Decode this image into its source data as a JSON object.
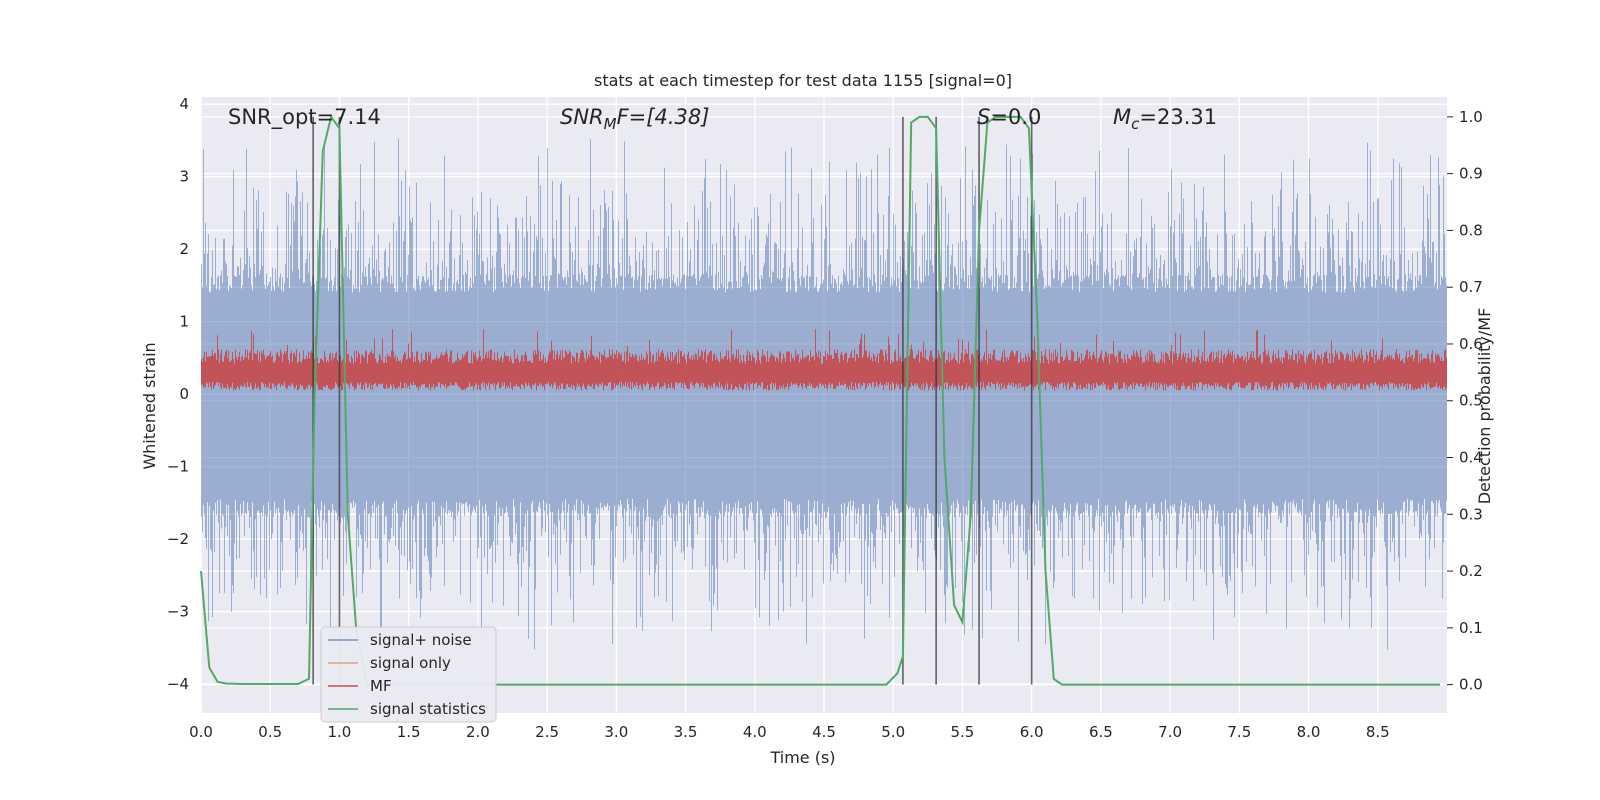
{
  "chart_data": {
    "type": "line",
    "title": "stats at each timestep for test data 1155 [signal=0]",
    "xlabel": "Time (s)",
    "ylabel_left": "Whitened strain",
    "ylabel_right": "Detection probability/MF",
    "xlim": [
      0,
      9.0
    ],
    "ylim_left": [
      -4.4,
      4.1
    ],
    "ylim_right": [
      -0.05,
      1.035
    ],
    "x_ticks": [
      "0.0",
      "0.5",
      "1.0",
      "1.5",
      "2.0",
      "2.5",
      "3.0",
      "3.5",
      "4.0",
      "4.5",
      "5.0",
      "5.5",
      "6.0",
      "6.5",
      "7.0",
      "7.5",
      "8.0",
      "8.5"
    ],
    "y_ticks_left": [
      "−4",
      "−3",
      "−2",
      "−1",
      "0",
      "1",
      "2",
      "3",
      "4"
    ],
    "y_ticks_right": [
      "0.0",
      "0.1",
      "0.2",
      "0.3",
      "0.4",
      "0.5",
      "0.6",
      "0.7",
      "0.8",
      "0.9",
      "1.0"
    ],
    "annotations": {
      "snr_opt": "SNR_opt=7.14",
      "snr_mf_base": "SNR",
      "snr_mf_sub": "M",
      "snr_mf_rest": "F=[4.38]",
      "s_base": "S",
      "s_rest": "=0.0",
      "mc_base": "M",
      "mc_sub": "c",
      "mc_rest": "=23.31"
    },
    "legend": {
      "position": "lower-left",
      "entries": [
        "signal+ noise",
        "signal only",
        "MF",
        "signal statistics"
      ]
    },
    "colors": {
      "noise": "#4c72b0",
      "signal_only": "#dd8452",
      "mf": "#c44e52",
      "stats": "#55a868",
      "plot_bg": "#eaeaf2",
      "grid": "#ffffff",
      "vline": "#333333"
    },
    "vertical_lines": [
      0.81,
      1.0,
      5.07,
      5.31,
      5.62,
      6.0
    ],
    "series": [
      {
        "name": "signal+ noise",
        "description": "whitened strain noise, amplitude mostly within ±1.7 with spikes to ±3.6",
        "core_band": [
          -1.7,
          1.65
        ],
        "spike_range": [
          -3.6,
          3.65
        ]
      },
      {
        "name": "signal only",
        "values": []
      },
      {
        "name": "MF",
        "description": "matched filter output, band roughly 0.05 to 0.65",
        "band": [
          0.05,
          0.62
        ]
      },
      {
        "name": "signal statistics",
        "axis": "right",
        "x": [
          0.0,
          0.06,
          0.12,
          0.18,
          0.3,
          0.5,
          0.7,
          0.78,
          0.82,
          0.88,
          0.94,
          1.0,
          1.06,
          1.12,
          1.2,
          2.0,
          3.0,
          4.0,
          4.95,
          5.03,
          5.07,
          5.13,
          5.19,
          5.25,
          5.31,
          5.37,
          5.44,
          5.5,
          5.56,
          5.62,
          5.68,
          5.74,
          5.8,
          5.86,
          5.92,
          5.98,
          6.04,
          6.1,
          6.16,
          6.22,
          6.35,
          7.0,
          8.0,
          8.95
        ],
        "y": [
          0.2,
          0.03,
          0.005,
          0.002,
          0.001,
          0.001,
          0.001,
          0.01,
          0.5,
          0.94,
          1.0,
          0.98,
          0.3,
          0.1,
          0.0,
          0.0,
          0.0,
          0.0,
          0.0,
          0.02,
          0.05,
          0.99,
          1.0,
          1.0,
          0.98,
          0.4,
          0.14,
          0.11,
          0.3,
          0.8,
          0.99,
          1.0,
          1.0,
          1.0,
          1.0,
          0.98,
          0.65,
          0.2,
          0.01,
          0.0,
          0.0,
          0.0,
          0.0,
          0.0
        ]
      }
    ]
  }
}
